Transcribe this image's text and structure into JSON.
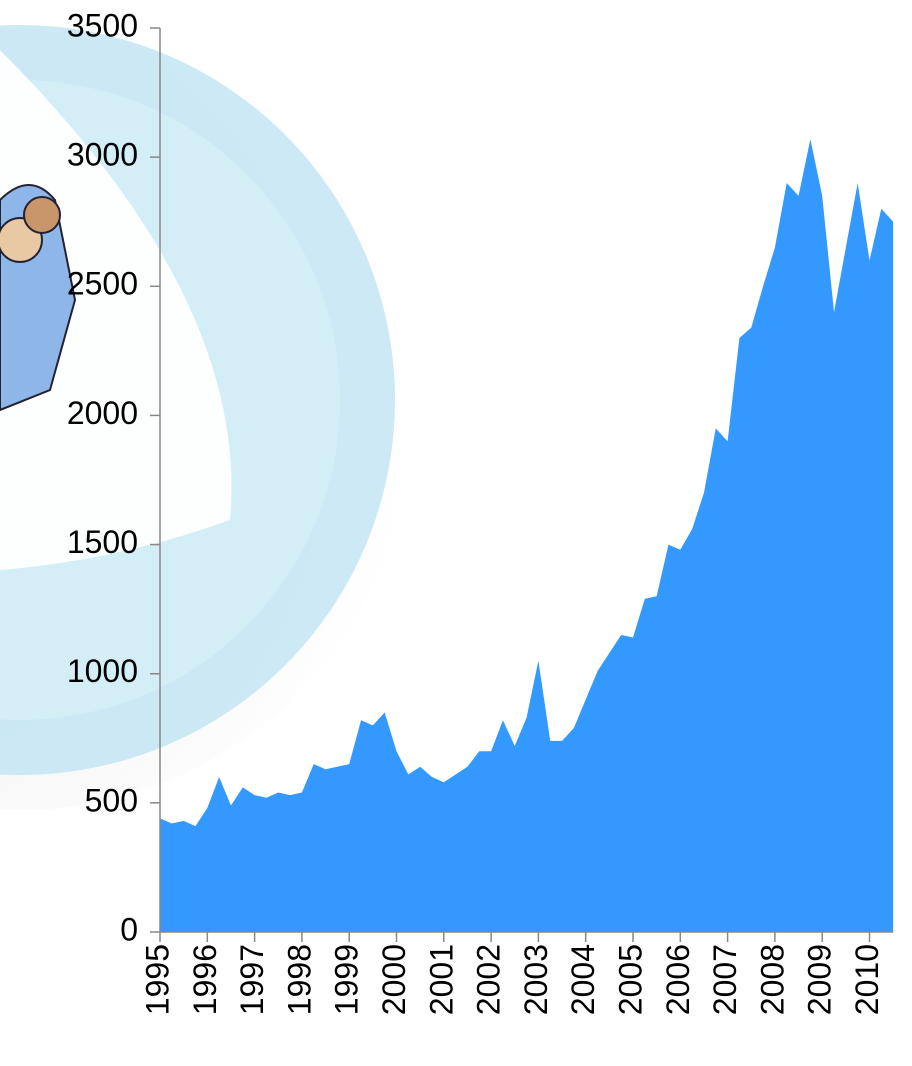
{
  "chart_data": {
    "type": "area",
    "color": "#3399ff",
    "categories": [
      "1995",
      null,
      null,
      null,
      "1996",
      null,
      null,
      null,
      "1997",
      null,
      null,
      null,
      "1998",
      null,
      null,
      null,
      "1999",
      null,
      null,
      null,
      "2000",
      null,
      null,
      null,
      "2001",
      null,
      null,
      null,
      "2002",
      null,
      null,
      null,
      "2003",
      null,
      null,
      null,
      "2004",
      null,
      null,
      null,
      "2005",
      null,
      null,
      null,
      "2006",
      null,
      null,
      null,
      "2007",
      null,
      null,
      null,
      "2008",
      null,
      null,
      null,
      "2009",
      null,
      null,
      null,
      "2010",
      null,
      null
    ],
    "values": [
      440,
      420,
      430,
      410,
      480,
      600,
      490,
      560,
      530,
      520,
      540,
      530,
      540,
      650,
      630,
      640,
      650,
      820,
      800,
      850,
      700,
      610,
      640,
      600,
      580,
      610,
      640,
      700,
      700,
      820,
      720,
      830,
      1050,
      740,
      740,
      790,
      900,
      1010,
      1080,
      1150,
      1140,
      1290,
      1300,
      1500,
      1480,
      1560,
      1700,
      1950,
      1900,
      2300,
      2340,
      2500,
      2650,
      2900,
      2850,
      3070,
      2850,
      2400,
      2650,
      2900,
      2600,
      2800,
      2750
    ],
    "ylim": [
      0,
      3500
    ],
    "yticks": [
      0,
      500,
      1000,
      1500,
      2000,
      2500,
      3000,
      3500
    ]
  }
}
